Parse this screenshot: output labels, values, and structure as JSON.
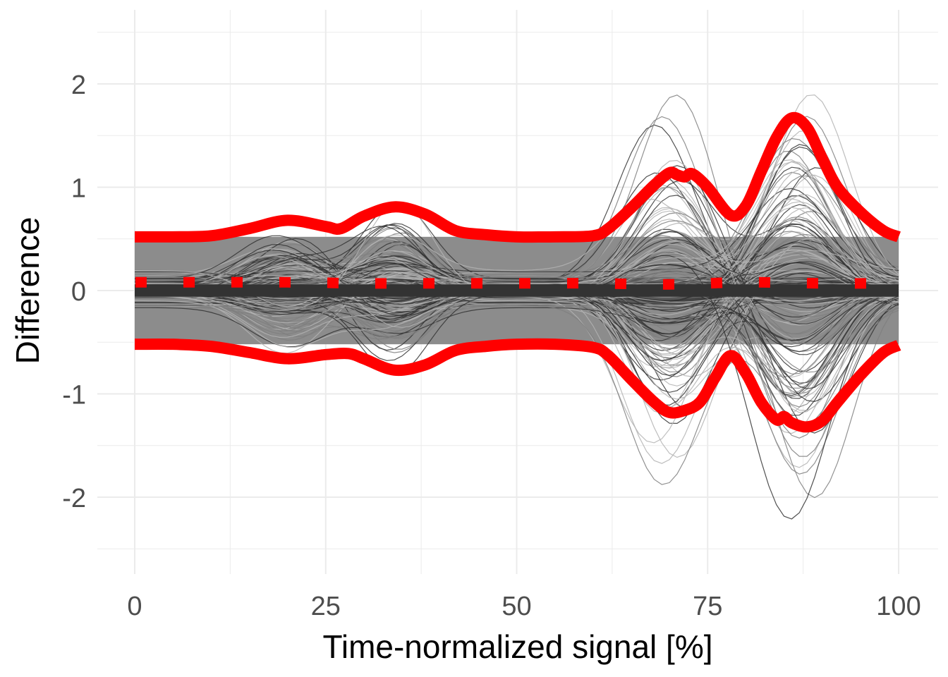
{
  "chart_data": {
    "type": "line",
    "title": "",
    "xlabel": "Time-normalized signal [%]",
    "ylabel": "Difference",
    "xlim": [
      -5,
      105
    ],
    "ylim": [
      -2.7,
      2.7
    ],
    "x_ticks": [
      0,
      25,
      50,
      75,
      100
    ],
    "y_ticks": [
      -2,
      -1,
      0,
      1,
      2
    ],
    "x_tick_labels": [
      "0",
      "25",
      "50",
      "75",
      "100"
    ],
    "y_tick_labels": [
      "-2",
      "-1",
      "0",
      "1",
      "2"
    ],
    "grid": true,
    "legend": "none",
    "colors": {
      "curves_dark": "#333333",
      "curves_mid": "#7f7f7f",
      "curves_light": "#b3b3b3",
      "band_outer": "#8c8c8c",
      "band_inner": "#595959",
      "mean_band": "#333333",
      "limits": "#ff0000",
      "grid": "#ebebeb"
    },
    "series": [
      {
        "role": "upper-limit",
        "style": "thick-solid",
        "x": [
          0,
          5,
          10,
          15,
          20,
          25,
          27,
          30,
          34,
          38,
          42,
          46,
          50,
          55,
          60,
          62,
          65,
          68,
          70,
          71,
          72,
          73,
          75,
          78,
          80,
          82,
          84,
          86,
          88,
          90,
          92,
          95,
          98,
          100
        ],
        "y": [
          0.52,
          0.52,
          0.53,
          0.6,
          0.68,
          0.62,
          0.6,
          0.72,
          0.81,
          0.74,
          0.58,
          0.54,
          0.52,
          0.52,
          0.53,
          0.6,
          0.8,
          1.02,
          1.14,
          1.12,
          1.1,
          1.13,
          1.0,
          0.73,
          0.82,
          1.15,
          1.48,
          1.67,
          1.58,
          1.28,
          1.0,
          0.76,
          0.58,
          0.52
        ]
      },
      {
        "role": "mean",
        "style": "dotted",
        "x": [
          0,
          10,
          20,
          30,
          40,
          50,
          60,
          70,
          80,
          90,
          100
        ],
        "y": [
          0.08,
          0.08,
          0.08,
          0.07,
          0.07,
          0.07,
          0.07,
          0.06,
          0.08,
          0.07,
          0.07
        ]
      },
      {
        "role": "lower-limit",
        "style": "thick-solid",
        "x": [
          0,
          5,
          10,
          15,
          20,
          25,
          28,
          30,
          34,
          38,
          42,
          46,
          50,
          55,
          60,
          62,
          65,
          68,
          70,
          72,
          74,
          76,
          78,
          80,
          82,
          84,
          85,
          86,
          88,
          90,
          92,
          95,
          98,
          100
        ],
        "y": [
          -0.52,
          -0.52,
          -0.54,
          -0.6,
          -0.66,
          -0.62,
          -0.61,
          -0.66,
          -0.77,
          -0.72,
          -0.58,
          -0.54,
          -0.52,
          -0.52,
          -0.55,
          -0.63,
          -0.86,
          -1.08,
          -1.18,
          -1.16,
          -1.08,
          -0.84,
          -0.63,
          -0.8,
          -1.08,
          -1.25,
          -1.22,
          -1.28,
          -1.32,
          -1.26,
          -1.08,
          -0.82,
          -0.6,
          -0.53
        ]
      }
    ]
  }
}
